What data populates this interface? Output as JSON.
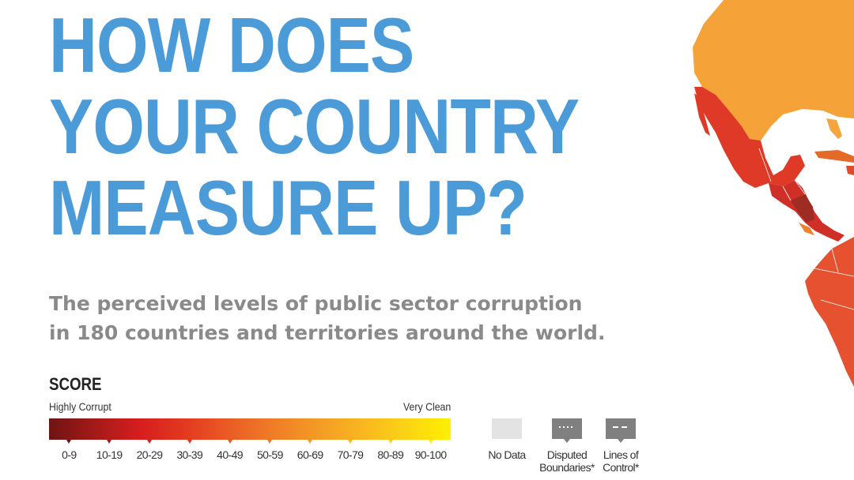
{
  "headline": {
    "lines": [
      "HOW DOES",
      "YOUR COUNTRY",
      "MEASURE UP?"
    ]
  },
  "subtitle": {
    "lines": [
      "The perceived levels of public sector corruption",
      "in 180 countries and territories around the world."
    ]
  },
  "legend": {
    "title": "SCORE",
    "low_label": "Highly Corrupt",
    "high_label": "Very Clean",
    "bins": [
      {
        "label": "0-9",
        "color": "#6e1414"
      },
      {
        "label": "10-19",
        "color": "#a31a18"
      },
      {
        "label": "20-29",
        "color": "#d51d1e"
      },
      {
        "label": "30-39",
        "color": "#e2381f"
      },
      {
        "label": "40-49",
        "color": "#ea5b24"
      },
      {
        "label": "50-59",
        "color": "#ef7c26"
      },
      {
        "label": "60-69",
        "color": "#f49a25"
      },
      {
        "label": "70-79",
        "color": "#f8b61f"
      },
      {
        "label": "80-89",
        "color": "#fbd315"
      },
      {
        "label": "90-100",
        "color": "#fff000"
      }
    ],
    "extra_keys": [
      {
        "id": "no-data",
        "lines": [
          "No Data"
        ],
        "color": "#e3e3e3",
        "pattern": ""
      },
      {
        "id": "disputed-boundaries",
        "lines": [
          "Disputed",
          "Boundaries*"
        ],
        "color": "#808080",
        "pattern": "dotted"
      },
      {
        "id": "lines-of-control",
        "lines": [
          "Lines of",
          "Control*"
        ],
        "color": "#808080",
        "pattern": "dashed"
      }
    ]
  },
  "map": {
    "regions": [
      {
        "name": "north-america-region",
        "color": "#f5a239"
      },
      {
        "name": "mexico-region",
        "color": "#df3a27"
      },
      {
        "name": "central-america-region",
        "color": "#cf2f26"
      },
      {
        "name": "honduras-region",
        "color": "#9e2c25"
      },
      {
        "name": "south-america-region",
        "color": "#e6522f"
      }
    ]
  }
}
